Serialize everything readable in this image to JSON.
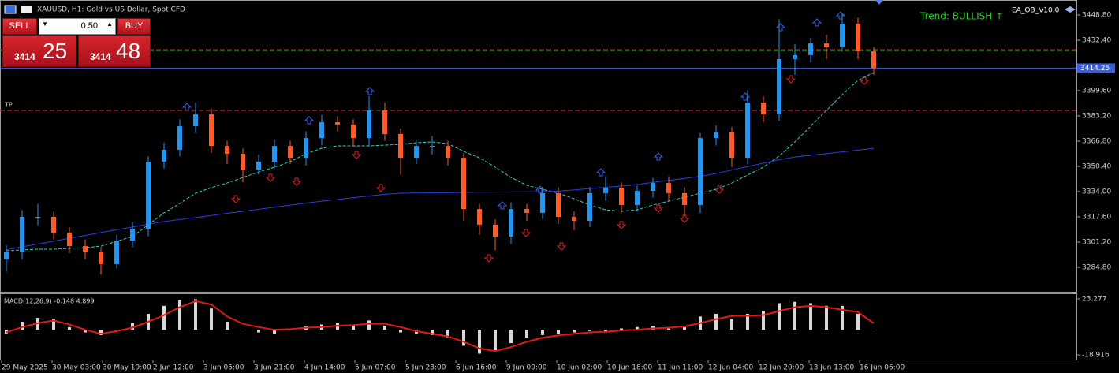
{
  "header": {
    "symbol": "XAUUSD, H1:  Gold vs US Dollar, Spot CFD"
  },
  "trade_panel": {
    "sell": "SELL",
    "buy": "BUY",
    "lot": "0.50",
    "bid_big": "3414",
    "bid_small": "25",
    "ask_big": "3414",
    "ask_small": "48"
  },
  "indicator": {
    "trend": "Trend: BULLISH ↑",
    "ea": "EA_OB_V10.0"
  },
  "chart_data": [
    {
      "type": "candlestick",
      "up_color": "#2196f3",
      "down_color": "#ff5a28",
      "x_labels": [
        "29 May 2025",
        "30 May 03:00",
        "30 May 19:00",
        "2 Jun 12:00",
        "3 Jun 05:00",
        "3 Jun 21:00",
        "4 Jun 14:00",
        "5 Jun 07:00",
        "5 Jun 23:00",
        "6 Jun 16:00",
        "9 Jun 09:00",
        "10 Jun 02:00",
        "10 Jun 18:00",
        "11 Jun 11:00",
        "12 Jun 04:00",
        "12 Jun 20:00",
        "13 Jun 13:00",
        "16 Jun 06:00"
      ],
      "open": [
        3290,
        3294.5,
        3317.6,
        3317.6,
        3307.4,
        3298.6,
        3294.5,
        3286.9,
        3302.2,
        3309.9,
        3353.5,
        3361.2,
        3376.5,
        3384.2,
        3363.7,
        3358.6,
        3348.3,
        3353.5,
        3363.7,
        3356.0,
        3368.8,
        3379.1,
        3377.6,
        3368.8,
        3386.8,
        3371.4,
        3356.0,
        3363.7,
        3363.7,
        3356.0,
        3322.7,
        3312.5,
        3304.8,
        3322.7,
        3320.2,
        3333.0,
        3317.6,
        3315.0,
        3333.0,
        3336.6,
        3325.3,
        3334.5,
        3339.6,
        3333.0,
        3325.3,
        3368.8,
        3372.4,
        3356.0,
        3391.9,
        3384.2,
        3420.1,
        3422.7,
        3430.3,
        3427.8,
        3443.2,
        3425.2
      ],
      "high": [
        3299,
        3322,
        3326,
        3321,
        3311,
        3303,
        3298,
        3306,
        3314,
        3357,
        3366,
        3381,
        3392,
        3388,
        3367,
        3362,
        3358,
        3368,
        3367,
        3373,
        3384,
        3383,
        3381,
        3396,
        3392,
        3375,
        3367,
        3370,
        3367,
        3359,
        3326,
        3316,
        3327,
        3326,
        3337,
        3337,
        3321,
        3337,
        3344,
        3340,
        3338,
        3343,
        3344,
        3337,
        3372,
        3377,
        3376,
        3400,
        3396,
        3446,
        3430,
        3434,
        3436,
        3450,
        3447,
        3428
      ],
      "low": [
        3282,
        3290,
        3312,
        3303,
        3294,
        3290,
        3280,
        3284,
        3298,
        3305,
        3349,
        3357,
        3372,
        3359,
        3352,
        3340,
        3345,
        3349,
        3352,
        3351,
        3364,
        3373,
        3364,
        3364,
        3367,
        3345,
        3352,
        3358,
        3351,
        3315,
        3306,
        3296,
        3300,
        3315,
        3316,
        3313,
        3309,
        3311,
        3328,
        3320,
        3321,
        3330,
        3328,
        3318,
        3320,
        3364,
        3350,
        3352,
        3379,
        3380,
        3410,
        3418,
        3420,
        3425,
        3420,
        3410
      ],
      "close": [
        3294.5,
        3317.6,
        3317.6,
        3307.4,
        3298.6,
        3294.5,
        3286.9,
        3302.2,
        3309.9,
        3353.5,
        3361.2,
        3376.5,
        3384.2,
        3363.7,
        3358.6,
        3348.3,
        3353.5,
        3363.7,
        3356.0,
        3368.8,
        3379.1,
        3377.6,
        3368.8,
        3386.8,
        3371.4,
        3356.0,
        3363.7,
        3363.7,
        3356.0,
        3322.7,
        3312.5,
        3304.8,
        3322.7,
        3320.2,
        3333.0,
        3317.6,
        3315.0,
        3333.0,
        3336.6,
        3325.3,
        3334.5,
        3339.6,
        3333.0,
        3325.3,
        3368.8,
        3372.4,
        3356.0,
        3391.9,
        3384.2,
        3420.1,
        3422.7,
        3430.3,
        3427.8,
        3443.2,
        3425.2,
        3414.25
      ],
      "series": [
        {
          "color": "#2fd0c0",
          "dashed": true,
          "values": [
            3295.6,
            3296.1,
            3296.6,
            3296.6,
            3297.1,
            3297.6,
            3298.6,
            3301.7,
            3304.8,
            3312.5,
            3320.2,
            3326.3,
            3333.0,
            3336.6,
            3339.6,
            3343.2,
            3346.8,
            3349.9,
            3353.5,
            3358.6,
            3362.2,
            3363.7,
            3363.7,
            3363.7,
            3364.2,
            3364.7,
            3365.8,
            3366.3,
            3365.2,
            3360.1,
            3356.0,
            3349.9,
            3343.2,
            3338.1,
            3335.5,
            3333.0,
            3329.4,
            3325.3,
            3322.2,
            3321.2,
            3322.2,
            3325.3,
            3327.8,
            3330.4,
            3333.0,
            3335.5,
            3339.6,
            3344.8,
            3349.9,
            3357.1,
            3366.3,
            3376.5,
            3386.8,
            3397.0,
            3406.3,
            3411.4
          ]
        },
        {
          "color": "#2a3fe0",
          "dashed": false,
          "values": [
            3296.3,
            3298.1,
            3300.0,
            3301.8,
            3303.7,
            3305.5,
            3307.4,
            3309.2,
            3311.0,
            3312.9,
            3314.5,
            3315.9,
            3317.2,
            3318.5,
            3319.9,
            3321.2,
            3322.5,
            3323.9,
            3325.2,
            3326.5,
            3327.8,
            3328.9,
            3330.1,
            3331.2,
            3332.3,
            3333.0,
            3333.1,
            3333.2,
            3333.3,
            3333.5,
            3333.6,
            3333.7,
            3333.8,
            3333.9,
            3334.0,
            3334.3,
            3335.1,
            3336.0,
            3336.8,
            3337.6,
            3338.6,
            3340.0,
            3341.3,
            3342.6,
            3344.0,
            3345.7,
            3348.0,
            3350.2,
            3352.5,
            3354.7,
            3356.5,
            3357.6,
            3358.7,
            3359.8,
            3361.0,
            3362.1
          ]
        }
      ],
      "levels": [
        {
          "label": "TP",
          "value": 3386.8,
          "color": "#e03030"
        },
        {
          "value": 3425.7,
          "color": "#2e9e2e"
        },
        {
          "value": 3426.2,
          "color": "#e05020"
        }
      ],
      "current_price": 3414.25,
      "current_color": "#3a5fd8",
      "ylim": [
        3268.4,
        3458.54
      ],
      "yticks": [
        {
          "value": 3448.8,
          "label": "3448.80"
        },
        {
          "value": 3432.4,
          "label": "3432.40"
        },
        {
          "value": 3399.6,
          "label": "3399.60"
        },
        {
          "value": 3383.2,
          "label": "3383.20"
        },
        {
          "value": 3366.8,
          "label": "3366.80"
        },
        {
          "value": 3350.4,
          "label": "3350.40"
        },
        {
          "value": 3334,
          "label": "3334.00"
        },
        {
          "value": 3317.6,
          "label": "3317.60"
        },
        {
          "value": 3301.2,
          "label": "3301.20"
        },
        {
          "value": 3284.8,
          "label": "3284.80"
        }
      ]
    },
    {
      "type": "macd",
      "title": "MACD(12,26,9) -0.148 4.899",
      "hist_color": "#d8d8d8",
      "signal_color": "#e01818",
      "histogram": [
        -3,
        6,
        9,
        8,
        2,
        -2,
        -4,
        -1,
        5,
        12,
        18,
        22,
        23,
        16,
        6,
        0,
        -2,
        -3,
        0,
        3,
        4,
        5,
        4,
        7,
        3,
        -2,
        -3,
        -4,
        -6,
        -12,
        -18,
        -16,
        -10,
        -6,
        -4,
        -3,
        -2,
        -1,
        -2,
        1,
        2,
        3,
        2,
        2,
        10,
        12,
        8,
        12,
        14,
        20,
        21,
        20,
        18,
        18,
        12,
        -0.148
      ],
      "signal": [
        -2,
        2,
        5,
        6.9,
        4,
        0,
        -3,
        -1,
        1.6,
        6,
        11,
        17,
        21.5,
        19,
        10,
        4.5,
        2,
        0,
        0.5,
        1.5,
        2,
        3,
        3.5,
        4.5,
        4.5,
        2,
        -1,
        -3.1,
        -5,
        -9,
        -14,
        -16,
        -13,
        -9,
        -6,
        -4.3,
        -3,
        -2,
        -1.5,
        -0.5,
        0,
        1,
        1.5,
        2.5,
        5,
        8,
        10.4,
        10.5,
        11,
        14,
        17,
        18,
        17,
        15,
        13.3,
        4.899
      ],
      "ylim": [
        -22.43,
        26.79
      ],
      "yticks": [
        23.277,
        -18.916
      ]
    }
  ]
}
